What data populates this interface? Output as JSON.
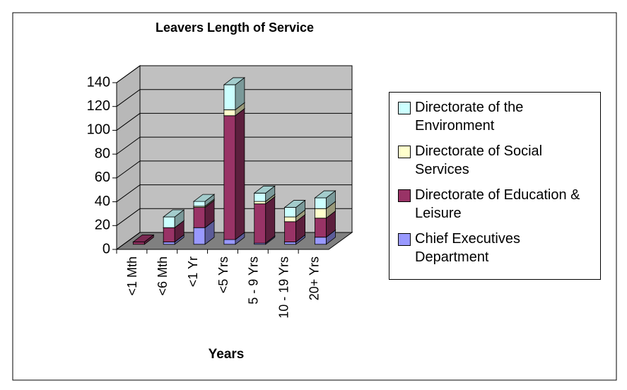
{
  "chart_data": {
    "type": "bar3d_stacked",
    "title": "Leavers Length of Service",
    "x_label": "Years",
    "categories": [
      "<1 Mth",
      "<6 Mth",
      "<1 Yr",
      "<5 Yrs",
      "5 - 9 Yrs",
      "10 - 19 Yrs",
      "20+ Yrs"
    ],
    "series": [
      {
        "name": "Chief Executives Department",
        "color": "#9999ff",
        "values": [
          0,
          2,
          14,
          4,
          1,
          2,
          6
        ]
      },
      {
        "name": "Directorate of Education & Leisure",
        "color": "#993366",
        "values": [
          2,
          12,
          17,
          104,
          33,
          17,
          16
        ]
      },
      {
        "name": "Directorate of Social Services",
        "color": "#ffffcc",
        "values": [
          0,
          0,
          1,
          5,
          2,
          4,
          8
        ]
      },
      {
        "name": "Directorate of the Environment",
        "color": "#ccffff",
        "values": [
          0,
          9,
          4,
          21,
          7,
          8,
          9
        ]
      }
    ],
    "ylim": [
      0,
      140
    ],
    "yticks": [
      0,
      20,
      40,
      60,
      80,
      100,
      120,
      140
    ],
    "grid": true,
    "legend": "right"
  }
}
